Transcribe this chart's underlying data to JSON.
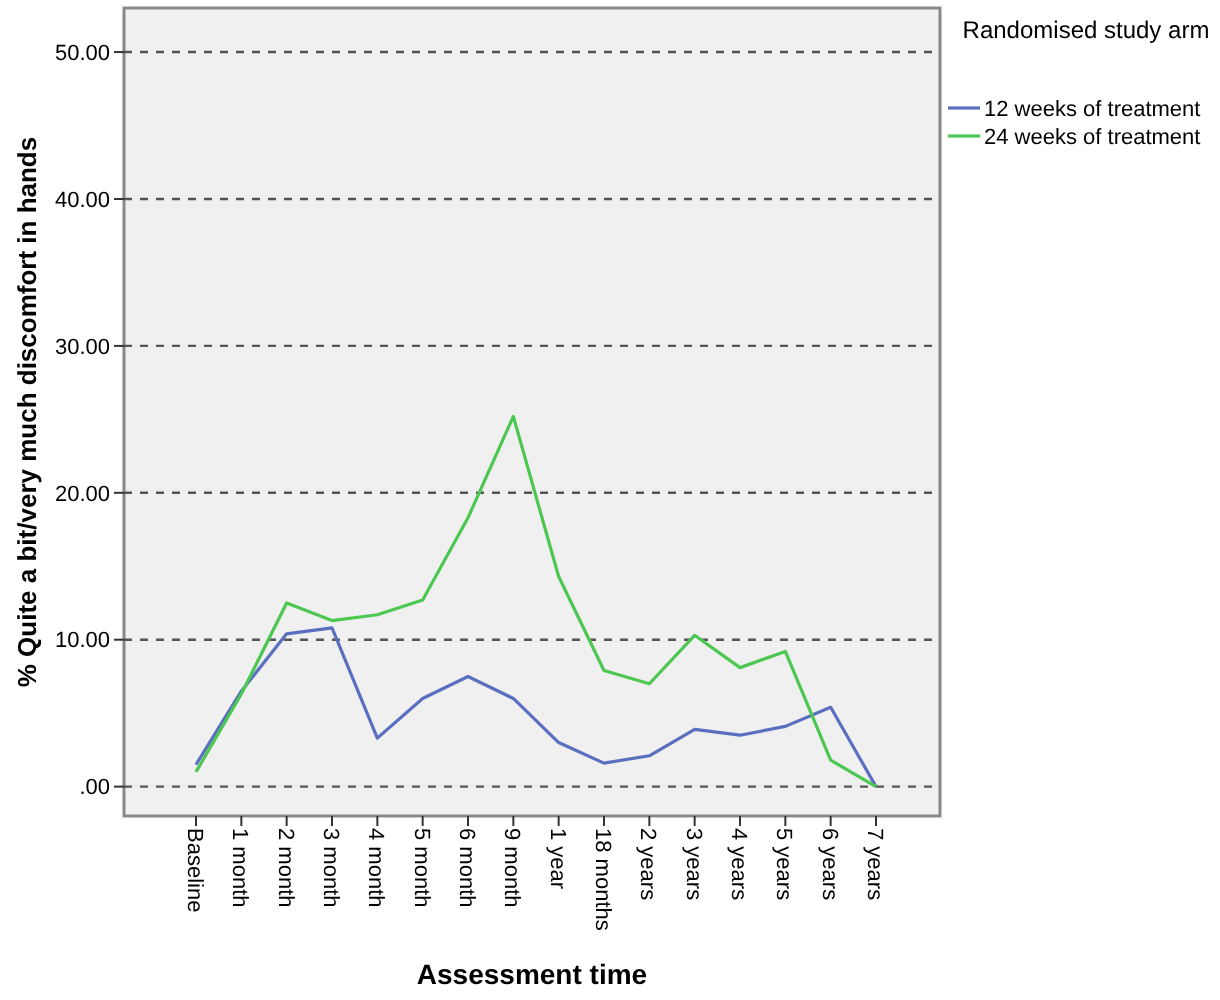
{
  "chart_data": {
    "type": "line",
    "xlabel": "Assessment time",
    "ylabel": "% Quite a bit/very much discomfort in hands",
    "legend_title": "Randomised study arm",
    "categories": [
      "Baseline",
      "1 month",
      "2 month",
      "3 month",
      "4 month",
      "5 month",
      "6 month",
      "9 month",
      "1 year",
      "18 months",
      "2 years",
      "3 years",
      "4 years",
      "5 years",
      "6 years",
      "7 years"
    ],
    "series": [
      {
        "name": "12 weeks of treatment",
        "color": "#5a6fbf",
        "values": [
          1.5,
          6.5,
          10.4,
          10.8,
          3.3,
          6.0,
          7.5,
          6.0,
          3.0,
          1.6,
          2.1,
          3.9,
          3.5,
          4.1,
          5.4,
          0
        ]
      },
      {
        "name": "24 weeks of treatment",
        "color": "#4cc752",
        "values": [
          1.0,
          6.3,
          12.5,
          11.3,
          11.7,
          12.7,
          18.3,
          25.2,
          14.3,
          7.9,
          7.0,
          10.3,
          8.1,
          9.2,
          1.8,
          0
        ]
      }
    ],
    "ylim": [
      -2,
      53
    ],
    "yticks": [
      {
        "value": 0,
        "label": ".00"
      },
      {
        "value": 10,
        "label": "10.00"
      },
      {
        "value": 20,
        "label": "20.00"
      },
      {
        "value": 30,
        "label": "30.00"
      },
      {
        "value": 40,
        "label": "40.00"
      },
      {
        "value": 50,
        "label": "50.00"
      }
    ],
    "grid": "y",
    "legend": "right",
    "marker": "none",
    "line_style": "solid"
  }
}
